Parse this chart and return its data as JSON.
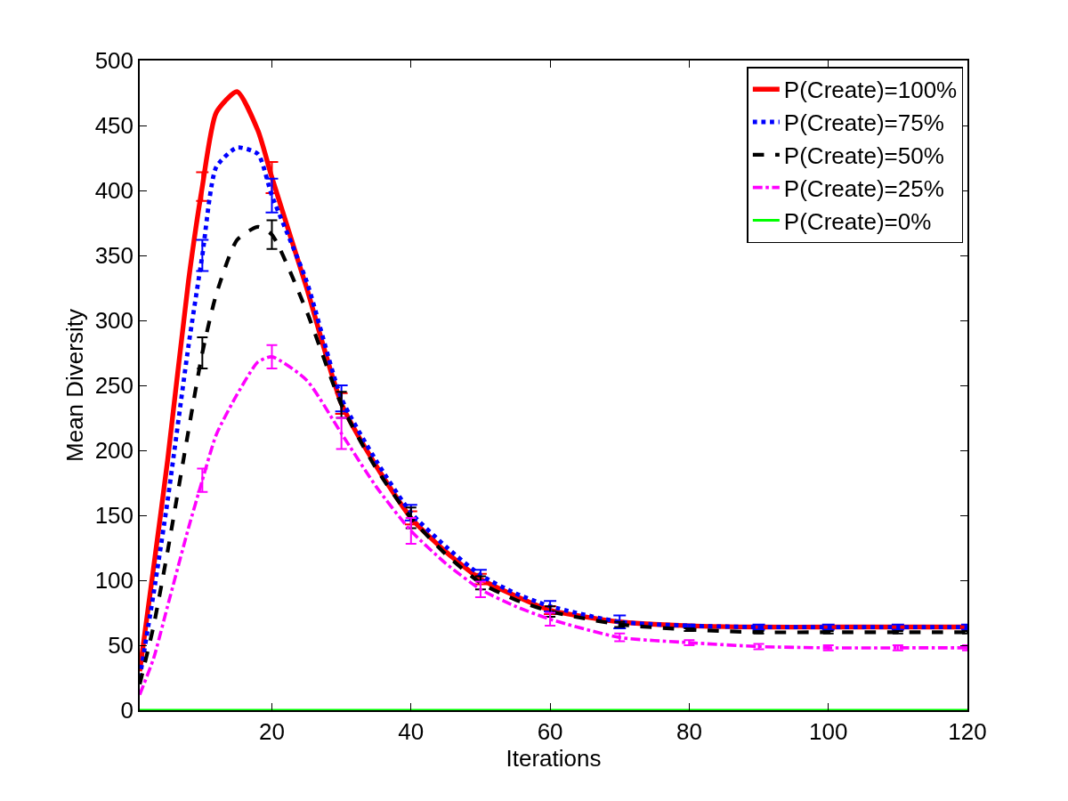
{
  "chart_data": {
    "type": "line",
    "xlabel": "Iterations",
    "ylabel": "Mean Diversity",
    "x": [
      1,
      3,
      5,
      8,
      10,
      12,
      15,
      18,
      20,
      25,
      30,
      35,
      40,
      45,
      50,
      55,
      60,
      70,
      80,
      90,
      100,
      110,
      120
    ],
    "series": [
      {
        "name": "P(Create)=100%",
        "color": "#ff0000",
        "line_style": "solid",
        "values": [
          30,
          110,
          192,
          330,
          403,
          460,
          476,
          446,
          410,
          325,
          236,
          188,
          148,
          122,
          101,
          88,
          77,
          68,
          65,
          64,
          64,
          64,
          64
        ],
        "errors": [
          null,
          null,
          null,
          null,
          11,
          null,
          null,
          null,
          12,
          null,
          8,
          null,
          5,
          null,
          4,
          null,
          3,
          null,
          null,
          null,
          null,
          null,
          null
        ]
      },
      {
        "name": "P(Create)=75%",
        "color": "#0000ff",
        "line_style": "dotted",
        "values": [
          25,
          90,
          161,
          280,
          350,
          418,
          433,
          428,
          396,
          330,
          240,
          192,
          152,
          126,
          104,
          90,
          80,
          68,
          65,
          64,
          64,
          64,
          64
        ],
        "errors": [
          null,
          null,
          null,
          null,
          12,
          null,
          null,
          null,
          13,
          null,
          10,
          null,
          6,
          null,
          4,
          null,
          4,
          5,
          1,
          2,
          2,
          2,
          2
        ]
      },
      {
        "name": "P(Create)=50%",
        "color": "#000000",
        "line_style": "dashed",
        "values": [
          20,
          65,
          122,
          215,
          275,
          320,
          362,
          372,
          366,
          307,
          235,
          186,
          148,
          120,
          98,
          85,
          76,
          66,
          62,
          60,
          60,
          60,
          60
        ],
        "errors": [
          null,
          null,
          null,
          null,
          12,
          null,
          null,
          null,
          11,
          null,
          10,
          null,
          8,
          null,
          5,
          null,
          4,
          2,
          1,
          1,
          1,
          1,
          1
        ]
      },
      {
        "name": "P(Create)=25%",
        "color": "#ff00ff",
        "line_style": "dashdot",
        "values": [
          12,
          40,
          80,
          140,
          177,
          212,
          243,
          268,
          272,
          254,
          213,
          172,
          138,
          113,
          93,
          80,
          70,
          56,
          52,
          49,
          48,
          48,
          48
        ],
        "errors": [
          null,
          null,
          null,
          null,
          9,
          null,
          null,
          null,
          9,
          null,
          12,
          null,
          10,
          null,
          6,
          null,
          5,
          3,
          2,
          2,
          2,
          2,
          2
        ]
      },
      {
        "name": "P(Create)=0%",
        "color": "#00ff00",
        "line_style": "solid",
        "values": [
          0,
          0,
          0,
          0,
          0,
          0,
          0,
          0,
          0,
          0,
          0,
          0,
          0,
          0,
          0,
          0,
          0,
          0,
          0,
          0,
          0,
          0,
          0
        ]
      }
    ],
    "xlim": [
      1,
      120
    ],
    "xticks": [
      20,
      40,
      60,
      80,
      100,
      120
    ],
    "ylim": [
      0,
      500
    ],
    "yticks": [
      0,
      50,
      100,
      150,
      200,
      250,
      300,
      350,
      400,
      450,
      500
    ],
    "grid": false,
    "legend": "top right",
    "marker": "none"
  }
}
